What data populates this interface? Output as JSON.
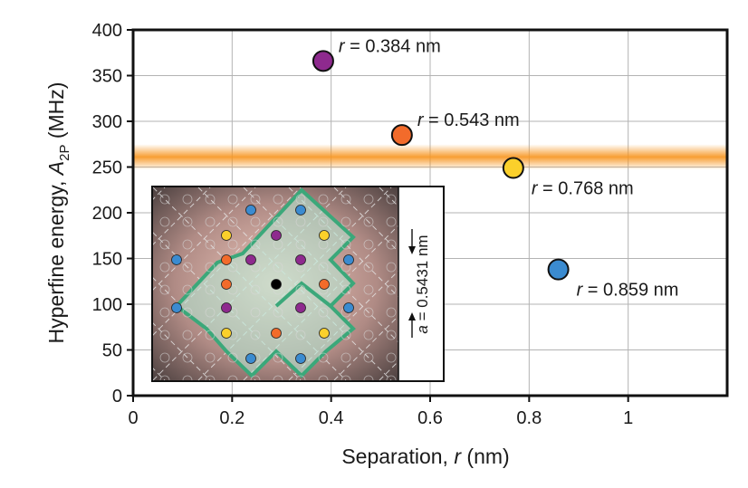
{
  "chart_data": {
    "type": "scatter",
    "xlabel": {
      "pre": "Separation, ",
      "var": "r",
      "post": " (nm)"
    },
    "ylabel": {
      "pre": "Hyperfine energy, ",
      "var": "A",
      "sub": "2P",
      "post": " (MHz)"
    },
    "xlim": [
      0,
      1.2
    ],
    "ylim": [
      0,
      400
    ],
    "xticks": [
      0,
      0.2,
      0.4,
      0.6,
      0.8,
      1
    ],
    "xtick_labels": [
      "0",
      "0.2",
      "0.4",
      "0.6",
      "0.8",
      "1"
    ],
    "yticks": [
      0,
      50,
      100,
      150,
      200,
      250,
      300,
      350,
      400
    ],
    "ytick_labels": [
      "0",
      "50",
      "100",
      "150",
      "200",
      "250",
      "300",
      "350",
      "400"
    ],
    "grid": true,
    "band": {
      "y_center": 261,
      "half_width": 14,
      "color": "#f7941d"
    },
    "points": [
      {
        "x": 0.384,
        "y": 366,
        "color": "#8e2a8e",
        "label": "= 0.384 nm",
        "label_pos": "upper-right"
      },
      {
        "x": 0.543,
        "y": 285,
        "color": "#f26b2b",
        "label": "= 0.543 nm",
        "label_pos": "upper-right"
      },
      {
        "x": 0.768,
        "y": 249,
        "color": "#fbd02b",
        "label": "= 0.768 nm",
        "label_pos": "lower-right"
      },
      {
        "x": 0.859,
        "y": 138,
        "color": "#3b8bd0",
        "label": "= 0.859 nm",
        "label_pos": "lower-right"
      }
    ],
    "label_var": "r",
    "inset": {
      "label_var": "a",
      "label_value": " = 0.5431 nm",
      "outline_color": "#3ba87a",
      "dots": [
        {
          "type": "blue",
          "color": "#3b8bd0"
        },
        {
          "type": "yellow",
          "color": "#fbd02b"
        },
        {
          "type": "purple",
          "color": "#8e2a8e"
        },
        {
          "type": "orange",
          "color": "#f26b2b"
        },
        {
          "type": "center",
          "color": "#000000"
        }
      ]
    }
  }
}
